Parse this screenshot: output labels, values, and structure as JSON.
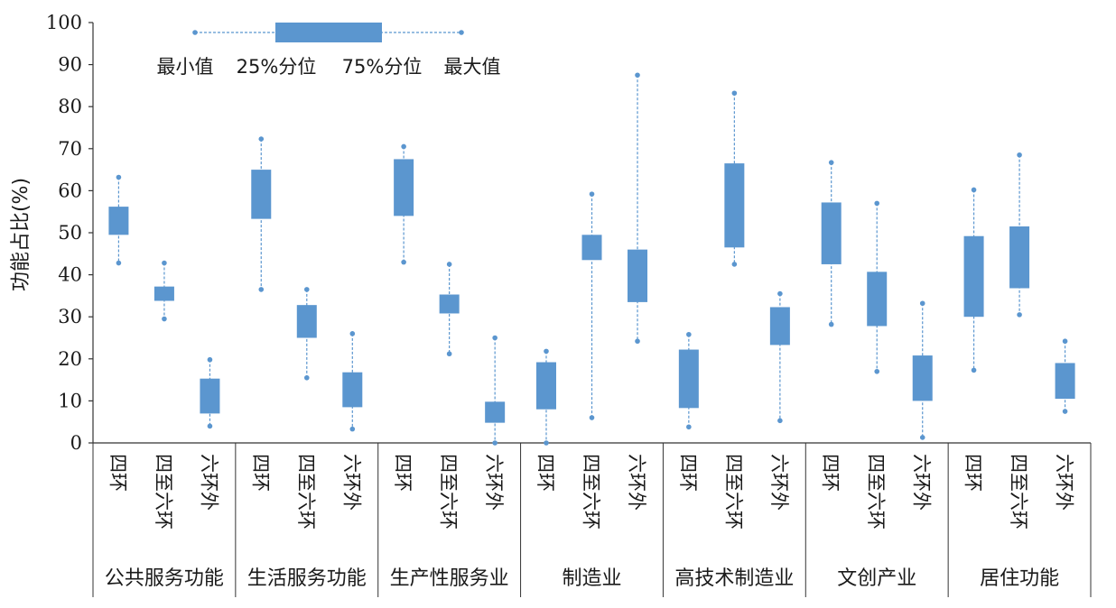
{
  "chart_data": {
    "type": "box",
    "ylabel": "功能占比(%)",
    "ylim": [
      0,
      100
    ],
    "yticks": [
      0,
      10,
      20,
      30,
      40,
      50,
      60,
      70,
      80,
      90,
      100
    ],
    "color": "#5b96cf",
    "legend": {
      "position": "top-left",
      "labels": [
        "最小值",
        "25%分位",
        "75%分位",
        "最大值"
      ]
    },
    "ring_labels": [
      "四环",
      "四至六环",
      "六环外"
    ],
    "groups": [
      {
        "name": "公共服务功能",
        "boxes": [
          {
            "ring": "四环",
            "min": 42.8,
            "q1": 49.5,
            "q3": 56.2,
            "max": 63.2
          },
          {
            "ring": "四至六环",
            "min": 29.5,
            "q1": 33.8,
            "q3": 37.2,
            "max": 42.8
          },
          {
            "ring": "六环外",
            "min": 4.0,
            "q1": 7.0,
            "q3": 15.3,
            "max": 19.8
          }
        ]
      },
      {
        "name": "生活服务功能",
        "boxes": [
          {
            "ring": "四环",
            "min": 36.5,
            "q1": 53.3,
            "q3": 65.0,
            "max": 72.3
          },
          {
            "ring": "四至六环",
            "min": 15.5,
            "q1": 25.0,
            "q3": 32.8,
            "max": 36.5
          },
          {
            "ring": "六环外",
            "min": 3.3,
            "q1": 8.5,
            "q3": 16.8,
            "max": 26.0
          }
        ]
      },
      {
        "name": "生产性服务业",
        "boxes": [
          {
            "ring": "四环",
            "min": 43.0,
            "q1": 54.0,
            "q3": 67.5,
            "max": 70.5
          },
          {
            "ring": "四至六环",
            "min": 21.2,
            "q1": 30.8,
            "q3": 35.3,
            "max": 42.5
          },
          {
            "ring": "六环外",
            "min": 0.0,
            "q1": 4.8,
            "q3": 9.8,
            "max": 25.0
          }
        ]
      },
      {
        "name": "制造业",
        "boxes": [
          {
            "ring": "四环",
            "min": 0.0,
            "q1": 8.0,
            "q3": 19.2,
            "max": 21.8
          },
          {
            "ring": "四至六环",
            "min": 6.0,
            "q1": 43.5,
            "q3": 49.5,
            "max": 59.2
          },
          {
            "ring": "六环外",
            "min": 24.2,
            "q1": 33.5,
            "q3": 46.0,
            "max": 87.5
          }
        ]
      },
      {
        "name": "高技术制造业",
        "boxes": [
          {
            "ring": "四环",
            "min": 3.8,
            "q1": 8.3,
            "q3": 22.2,
            "max": 25.8
          },
          {
            "ring": "四至六环",
            "min": 42.5,
            "q1": 46.5,
            "q3": 66.5,
            "max": 83.2
          },
          {
            "ring": "六环外",
            "min": 5.3,
            "q1": 23.3,
            "q3": 32.3,
            "max": 35.5
          }
        ]
      },
      {
        "name": "文创产业",
        "boxes": [
          {
            "ring": "四环",
            "min": 28.2,
            "q1": 42.5,
            "q3": 57.2,
            "max": 66.7
          },
          {
            "ring": "四至六环",
            "min": 17.0,
            "q1": 27.8,
            "q3": 40.7,
            "max": 57.0
          },
          {
            "ring": "六环外",
            "min": 1.3,
            "q1": 10.0,
            "q3": 20.8,
            "max": 33.2
          }
        ]
      },
      {
        "name": "居住功能",
        "boxes": [
          {
            "ring": "四环",
            "min": 17.3,
            "q1": 30.0,
            "q3": 49.2,
            "max": 60.2
          },
          {
            "ring": "四至六环",
            "min": 30.5,
            "q1": 36.8,
            "q3": 51.5,
            "max": 68.5
          },
          {
            "ring": "六环外",
            "min": 7.5,
            "q1": 10.5,
            "q3": 19.0,
            "max": 24.2
          }
        ]
      }
    ]
  }
}
